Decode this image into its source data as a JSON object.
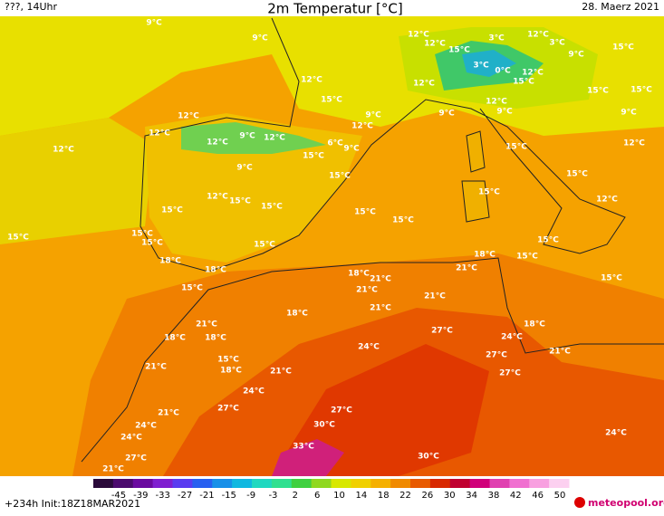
{
  "header": {
    "left": "???, 14Uhr",
    "title": "2m Temperatur [°C]",
    "date": "28. Maerz 2021"
  },
  "map": {
    "labels": [
      "9°C",
      "9°C",
      "12°C",
      "12°C",
      "15°C",
      "3°C",
      "12°C",
      "3°C",
      "15°C",
      "9°C",
      "12°C",
      "15°C",
      "3°C",
      "0°C",
      "12°C",
      "15°C",
      "12°C",
      "15°C",
      "15°C",
      "12°C",
      "12°C",
      "12°C",
      "9°C",
      "12°C",
      "6°C",
      "9°C",
      "12°C",
      "15°C",
      "9°C",
      "15°C",
      "12°C",
      "9°C",
      "9°C",
      "12°C",
      "9°C",
      "15°C",
      "9°C",
      "12°C",
      "15°C",
      "15°C",
      "12°C",
      "12°C",
      "15°C",
      "15°C",
      "15°C",
      "15°C",
      "15°C",
      "15°C",
      "15°C",
      "15°C",
      "15°C",
      "15°C",
      "15°C",
      "18°C",
      "18°C",
      "18°C",
      "21°C",
      "18°C",
      "21°C",
      "15°C",
      "21°C",
      "15°C",
      "21°C",
      "18°C",
      "21°C",
      "21°C",
      "18°C",
      "18°C",
      "27°C",
      "18°C",
      "24°C",
      "24°C",
      "27°C",
      "21°C",
      "15°C",
      "21°C",
      "18°C",
      "21°C",
      "27°C",
      "24°C",
      "21°C",
      "27°C",
      "27°C",
      "30°C",
      "24°C",
      "24°C",
      "24°C",
      "33°C",
      "27°C",
      "30°C",
      "21°C"
    ]
  },
  "legend": {
    "ticks": [
      -45,
      -39,
      -33,
      -27,
      -21,
      -15,
      -9,
      -3,
      2,
      6,
      10,
      14,
      18,
      22,
      26,
      30,
      34,
      38,
      42,
      46,
      50
    ],
    "colors": [
      "#2a0a3a",
      "#4b0a6e",
      "#6a0aa0",
      "#7f1fd0",
      "#5a3cf0",
      "#2860f0",
      "#1890e8",
      "#10b8e0",
      "#20d8c0",
      "#30e090",
      "#40d040",
      "#90d820",
      "#d8e800",
      "#f0d000",
      "#f5b000",
      "#f08a00",
      "#e85a00",
      "#d82800",
      "#c00030",
      "#d0007a",
      "#e040b0",
      "#f070d0",
      "#f8a0e0",
      "#fcd0f0"
    ]
  },
  "footer": {
    "run": "+234h Init:18Z18MAR2021",
    "brand": "meteopool.org"
  }
}
